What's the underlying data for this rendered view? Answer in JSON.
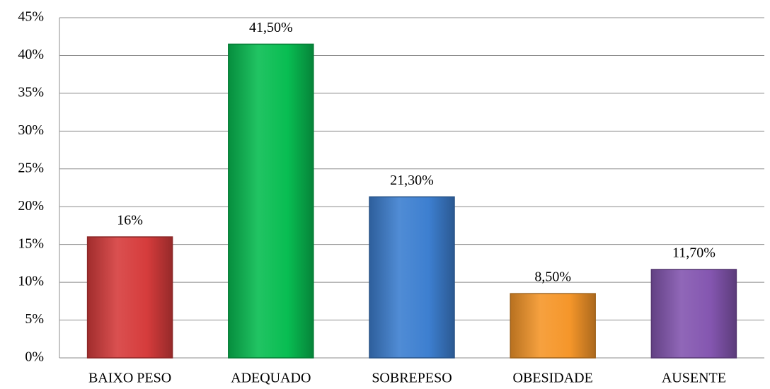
{
  "chart_data": {
    "type": "bar",
    "categories": [
      "BAIXO PESO",
      "ADEQUADO",
      "SOBREPESO",
      "OBESIDADE",
      "AUSENTE"
    ],
    "values": [
      16,
      41.5,
      21.3,
      8.5,
      11.7
    ],
    "value_labels": [
      "16%",
      "41,50%",
      "21,30%",
      "8,50%",
      "11,70%"
    ],
    "colors": [
      "#d63c3c",
      "#08bd52",
      "#3d7fd0",
      "#f5962a",
      "#8456b0"
    ],
    "ylim": [
      0,
      45
    ],
    "yticks": [
      {
        "value": 0,
        "label": "0%"
      },
      {
        "value": 5,
        "label": "5%"
      },
      {
        "value": 10,
        "label": "10%"
      },
      {
        "value": 15,
        "label": "15%"
      },
      {
        "value": 20,
        "label": "20%"
      },
      {
        "value": 25,
        "label": "25%"
      },
      {
        "value": 30,
        "label": "30%"
      },
      {
        "value": 35,
        "label": "35%"
      },
      {
        "value": 40,
        "label": "40%"
      },
      {
        "value": 45,
        "label": "45%"
      }
    ],
    "grid": true
  }
}
